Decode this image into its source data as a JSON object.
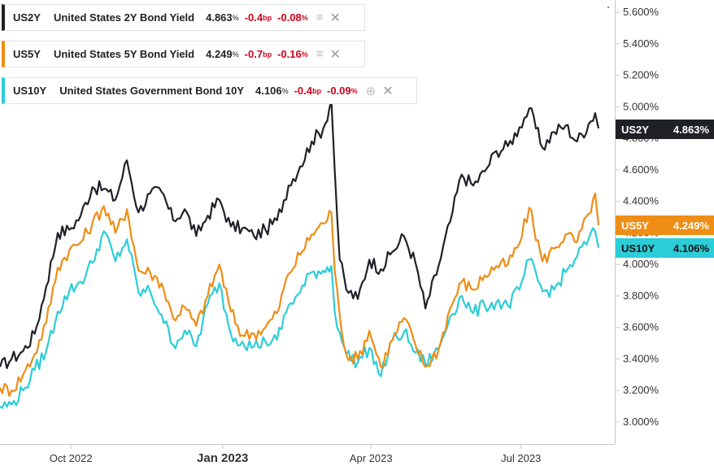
{
  "colors": {
    "US2Y": "#1f2127",
    "US5Y": "#ef8d15",
    "US10Y": "#2bcdd8",
    "change_negative": "#d0021b"
  },
  "legend": [
    {
      "symbol": "US2Y",
      "name": "United States 2Y Bond Yield",
      "last": "4.863",
      "unit": "%",
      "chg": "-0.4",
      "chg_unit": "bp",
      "chg_pct": "-0.08",
      "pct_unit": "%",
      "icon_name": "stack-icon",
      "close_name": "close-icon"
    },
    {
      "symbol": "US5Y",
      "name": "United States 5Y Bond Yield",
      "last": "4.249",
      "unit": "%",
      "chg": "-0.7",
      "chg_unit": "bp",
      "chg_pct": "-0.16",
      "pct_unit": "%",
      "icon_name": "stack-icon",
      "close_name": "close-icon"
    },
    {
      "symbol": "US10Y",
      "name": "United States Government Bond 10Y",
      "last": "4.106",
      "unit": "%",
      "chg": "-0.4",
      "chg_unit": "bp",
      "chg_pct": "-0.09",
      "pct_unit": "%",
      "icon_name": "stack-add-icon",
      "close_name": "close-icon"
    }
  ],
  "chart_data": {
    "type": "line",
    "x_range": [
      "2022-08-19",
      "2023-08-17"
    ],
    "ylim": [
      2.9,
      5.7
    ],
    "y_ticks": [
      "5.600%",
      "5.400%",
      "5.200%",
      "5.000%",
      "4.800%",
      "4.600%",
      "4.400%",
      "4.200%",
      "4.000%",
      "3.800%",
      "3.600%",
      "3.400%",
      "3.200%",
      "3.000%"
    ],
    "x_ticks": [
      {
        "date": "2022-10-01",
        "label": "Oct 2022",
        "bold": false
      },
      {
        "date": "2023-01-01",
        "label": "Jan 2023",
        "bold": true
      },
      {
        "date": "2023-04-01",
        "label": "Apr 2023",
        "bold": false
      },
      {
        "date": "2023-07-01",
        "label": "Jul 2023",
        "bold": false
      }
    ],
    "series": [
      {
        "name": "US2Y",
        "last_label": "US2Y",
        "last_value_label": "4.863%",
        "points": [
          [
            "2022-08-19",
            3.35
          ],
          [
            "2022-08-26",
            3.4
          ],
          [
            "2022-09-02",
            3.45
          ],
          [
            "2022-09-09",
            3.56
          ],
          [
            "2022-09-16",
            3.86
          ],
          [
            "2022-09-23",
            4.2
          ],
          [
            "2022-09-30",
            4.22
          ],
          [
            "2022-10-07",
            4.31
          ],
          [
            "2022-10-14",
            4.49
          ],
          [
            "2022-10-21",
            4.48
          ],
          [
            "2022-10-28",
            4.41
          ],
          [
            "2022-11-04",
            4.66
          ],
          [
            "2022-11-11",
            4.33
          ],
          [
            "2022-11-18",
            4.45
          ],
          [
            "2022-11-25",
            4.46
          ],
          [
            "2022-12-02",
            4.28
          ],
          [
            "2022-12-09",
            4.35
          ],
          [
            "2022-12-16",
            4.18
          ],
          [
            "2022-12-23",
            4.31
          ],
          [
            "2022-12-30",
            4.41
          ],
          [
            "2023-01-06",
            4.24
          ],
          [
            "2023-01-13",
            4.23
          ],
          [
            "2023-01-20",
            4.18
          ],
          [
            "2023-01-27",
            4.22
          ],
          [
            "2023-02-03",
            4.28
          ],
          [
            "2023-02-10",
            4.5
          ],
          [
            "2023-02-17",
            4.62
          ],
          [
            "2023-02-24",
            4.78
          ],
          [
            "2023-03-03",
            4.86
          ],
          [
            "2023-03-08",
            5.04
          ],
          [
            "2023-03-10",
            4.6
          ],
          [
            "2023-03-13",
            4.03
          ],
          [
            "2023-03-17",
            3.84
          ],
          [
            "2023-03-24",
            3.78
          ],
          [
            "2023-03-31",
            4.03
          ],
          [
            "2023-04-07",
            3.97
          ],
          [
            "2023-04-14",
            4.08
          ],
          [
            "2023-04-21",
            4.18
          ],
          [
            "2023-04-28",
            4.01
          ],
          [
            "2023-05-04",
            3.72
          ],
          [
            "2023-05-12",
            3.99
          ],
          [
            "2023-05-19",
            4.27
          ],
          [
            "2023-05-26",
            4.57
          ],
          [
            "2023-06-02",
            4.5
          ],
          [
            "2023-06-09",
            4.59
          ],
          [
            "2023-06-16",
            4.72
          ],
          [
            "2023-06-23",
            4.75
          ],
          [
            "2023-06-30",
            4.87
          ],
          [
            "2023-07-06",
            4.99
          ],
          [
            "2023-07-14",
            4.74
          ],
          [
            "2023-07-21",
            4.84
          ],
          [
            "2023-07-28",
            4.88
          ],
          [
            "2023-08-04",
            4.78
          ],
          [
            "2023-08-11",
            4.89
          ],
          [
            "2023-08-15",
            4.96
          ],
          [
            "2023-08-17",
            4.863
          ]
        ]
      },
      {
        "name": "US5Y",
        "last_label": "US5Y",
        "last_value_label": "4.249%",
        "points": [
          [
            "2022-08-19",
            3.22
          ],
          [
            "2022-08-26",
            3.2
          ],
          [
            "2022-09-02",
            3.3
          ],
          [
            "2022-09-09",
            3.43
          ],
          [
            "2022-09-16",
            3.63
          ],
          [
            "2022-09-23",
            3.98
          ],
          [
            "2022-09-30",
            4.09
          ],
          [
            "2022-10-07",
            4.14
          ],
          [
            "2022-10-14",
            4.26
          ],
          [
            "2022-10-21",
            4.37
          ],
          [
            "2022-10-28",
            4.2
          ],
          [
            "2022-11-04",
            4.35
          ],
          [
            "2022-11-11",
            3.96
          ],
          [
            "2022-11-18",
            3.95
          ],
          [
            "2022-11-25",
            3.88
          ],
          [
            "2022-12-02",
            3.66
          ],
          [
            "2022-12-09",
            3.73
          ],
          [
            "2022-12-16",
            3.61
          ],
          [
            "2022-12-23",
            3.8
          ],
          [
            "2022-12-30",
            4.0
          ],
          [
            "2023-01-06",
            3.7
          ],
          [
            "2023-01-13",
            3.55
          ],
          [
            "2023-01-20",
            3.56
          ],
          [
            "2023-01-27",
            3.6
          ],
          [
            "2023-02-03",
            3.69
          ],
          [
            "2023-02-10",
            3.94
          ],
          [
            "2023-02-17",
            4.06
          ],
          [
            "2023-02-24",
            4.19
          ],
          [
            "2023-03-03",
            4.26
          ],
          [
            "2023-03-08",
            4.33
          ],
          [
            "2023-03-10",
            3.96
          ],
          [
            "2023-03-13",
            3.68
          ],
          [
            "2023-03-17",
            3.43
          ],
          [
            "2023-03-24",
            3.4
          ],
          [
            "2023-03-31",
            3.58
          ],
          [
            "2023-04-07",
            3.35
          ],
          [
            "2023-04-14",
            3.52
          ],
          [
            "2023-04-21",
            3.66
          ],
          [
            "2023-04-28",
            3.49
          ],
          [
            "2023-05-04",
            3.35
          ],
          [
            "2023-05-12",
            3.46
          ],
          [
            "2023-05-19",
            3.72
          ],
          [
            "2023-05-26",
            3.89
          ],
          [
            "2023-06-02",
            3.84
          ],
          [
            "2023-06-09",
            3.93
          ],
          [
            "2023-06-16",
            3.99
          ],
          [
            "2023-06-23",
            4.0
          ],
          [
            "2023-06-30",
            4.13
          ],
          [
            "2023-07-06",
            4.36
          ],
          [
            "2023-07-14",
            4.02
          ],
          [
            "2023-07-21",
            4.1
          ],
          [
            "2023-07-28",
            4.19
          ],
          [
            "2023-08-04",
            4.14
          ],
          [
            "2023-08-11",
            4.32
          ],
          [
            "2023-08-15",
            4.45
          ],
          [
            "2023-08-17",
            4.249
          ]
        ]
      },
      {
        "name": "US10Y",
        "last_label": "US10Y",
        "last_value_label": "4.106%",
        "points": [
          [
            "2022-08-19",
            3.1
          ],
          [
            "2022-08-26",
            3.11
          ],
          [
            "2022-09-02",
            3.2
          ],
          [
            "2022-09-09",
            3.33
          ],
          [
            "2022-09-16",
            3.45
          ],
          [
            "2022-09-23",
            3.7
          ],
          [
            "2022-09-30",
            3.83
          ],
          [
            "2022-10-07",
            3.89
          ],
          [
            "2022-10-14",
            4.01
          ],
          [
            "2022-10-21",
            4.21
          ],
          [
            "2022-10-28",
            4.02
          ],
          [
            "2022-11-04",
            4.16
          ],
          [
            "2022-11-11",
            3.82
          ],
          [
            "2022-11-18",
            3.83
          ],
          [
            "2022-11-25",
            3.68
          ],
          [
            "2022-12-02",
            3.49
          ],
          [
            "2022-12-09",
            3.58
          ],
          [
            "2022-12-16",
            3.48
          ],
          [
            "2022-12-23",
            3.75
          ],
          [
            "2022-12-30",
            3.88
          ],
          [
            "2023-01-06",
            3.56
          ],
          [
            "2023-01-13",
            3.51
          ],
          [
            "2023-01-20",
            3.48
          ],
          [
            "2023-01-27",
            3.51
          ],
          [
            "2023-02-03",
            3.52
          ],
          [
            "2023-02-10",
            3.74
          ],
          [
            "2023-02-17",
            3.82
          ],
          [
            "2023-02-24",
            3.95
          ],
          [
            "2023-03-03",
            3.96
          ],
          [
            "2023-03-08",
            3.99
          ],
          [
            "2023-03-10",
            3.7
          ],
          [
            "2023-03-13",
            3.57
          ],
          [
            "2023-03-17",
            3.43
          ],
          [
            "2023-03-24",
            3.38
          ],
          [
            "2023-03-31",
            3.47
          ],
          [
            "2023-04-07",
            3.29
          ],
          [
            "2023-04-14",
            3.52
          ],
          [
            "2023-04-21",
            3.57
          ],
          [
            "2023-04-28",
            3.44
          ],
          [
            "2023-05-04",
            3.37
          ],
          [
            "2023-05-12",
            3.46
          ],
          [
            "2023-05-19",
            3.67
          ],
          [
            "2023-05-26",
            3.8
          ],
          [
            "2023-06-02",
            3.69
          ],
          [
            "2023-06-09",
            3.74
          ],
          [
            "2023-06-16",
            3.76
          ],
          [
            "2023-06-23",
            3.74
          ],
          [
            "2023-06-30",
            3.84
          ],
          [
            "2023-07-06",
            4.03
          ],
          [
            "2023-07-14",
            3.83
          ],
          [
            "2023-07-21",
            3.84
          ],
          [
            "2023-07-28",
            3.95
          ],
          [
            "2023-08-04",
            4.05
          ],
          [
            "2023-08-11",
            4.16
          ],
          [
            "2023-08-15",
            4.21
          ],
          [
            "2023-08-17",
            4.106
          ]
        ]
      }
    ]
  }
}
